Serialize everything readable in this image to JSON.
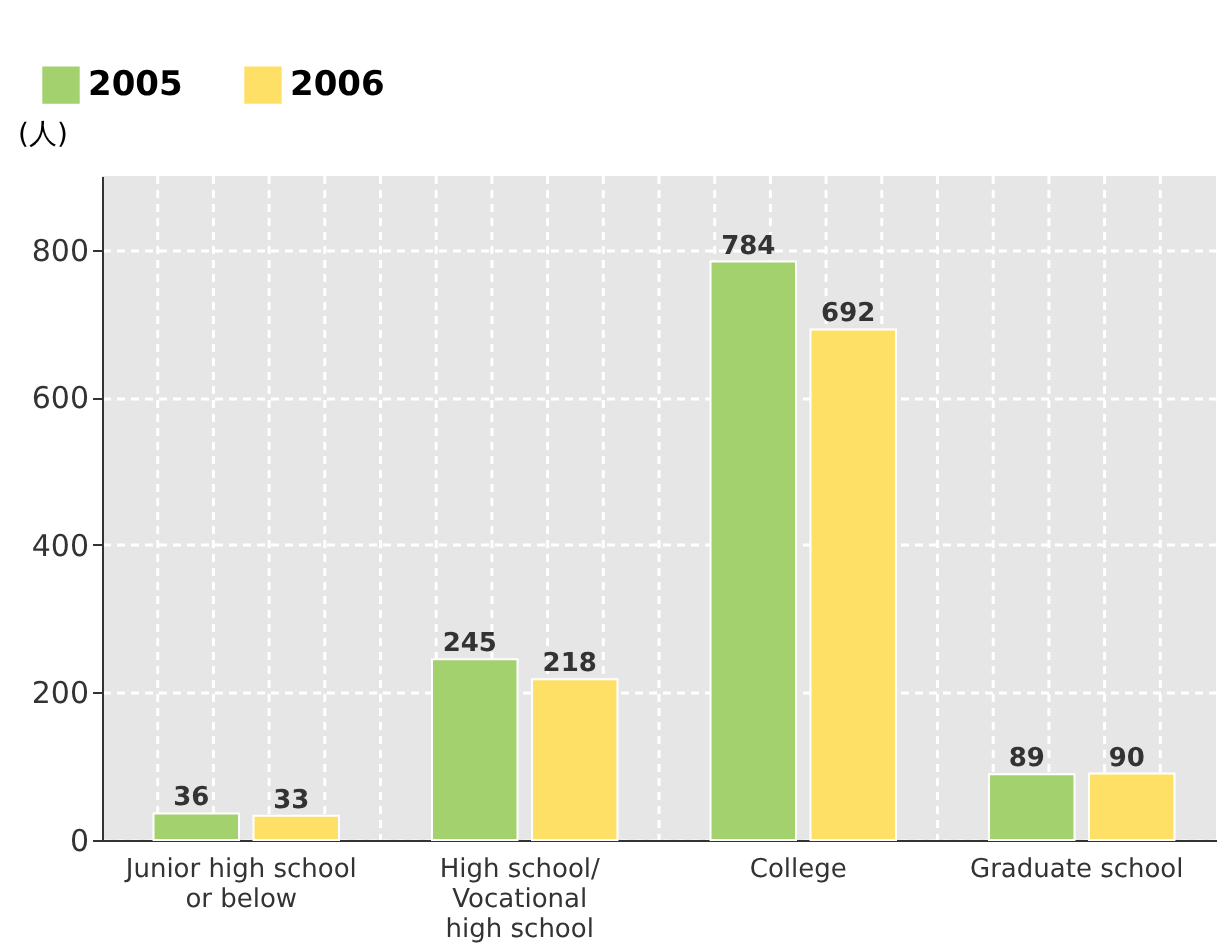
{
  "chart_data": {
    "type": "bar",
    "ylabel": "(人)",
    "categories": [
      "Junior high school\nor below",
      "High school/\nVocational\nhigh school",
      "College",
      "Graduate school"
    ],
    "series": [
      {
        "name": "2005",
        "color": "#a3d16e",
        "values": [
          36,
          245,
          784,
          89
        ]
      },
      {
        "name": "2006",
        "color": "#ffe066",
        "values": [
          33,
          218,
          692,
          90
        ]
      }
    ],
    "ylim": [
      0,
      900
    ],
    "yticks": [
      0,
      200,
      400,
      600,
      800
    ],
    "grid": true,
    "legend": "top left",
    "data_labels": true
  }
}
